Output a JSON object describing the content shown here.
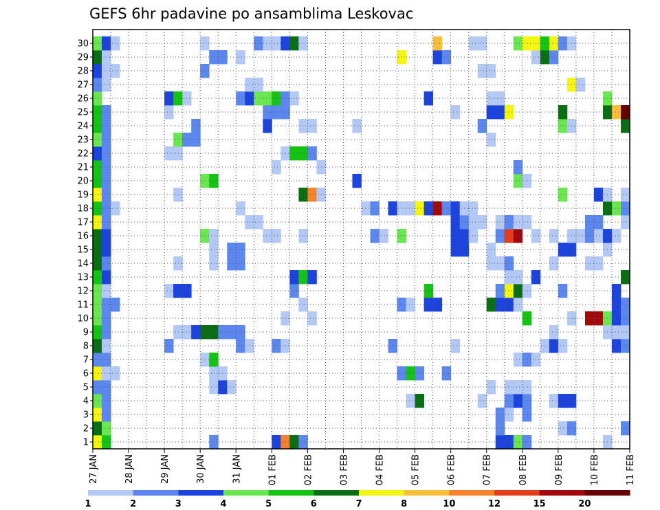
{
  "chart_data": {
    "type": "heatmap",
    "title": "GEFS 6hr padavine po ansamblima Leskovac",
    "xlabel": "",
    "ylabel": "",
    "y_ticks": [
      "1",
      "2",
      "3",
      "4",
      "5",
      "6",
      "7",
      "8",
      "9",
      "10",
      "11",
      "12",
      "13",
      "14",
      "15",
      "16",
      "17",
      "18",
      "19",
      "20",
      "21",
      "22",
      "23",
      "24",
      "25",
      "26",
      "27",
      "28",
      "29",
      "30"
    ],
    "x_ticks": [
      "27 JAN",
      "28 JAN",
      "29 JAN",
      "30 JAN",
      "31 JAN",
      "01 FEB",
      "02 FEB",
      "03 FEB",
      "04 FEB",
      "05 FEB",
      "06 FEB",
      "07 FEB",
      "08 FEB",
      "09 FEB",
      "10 FEB",
      "11 FEB"
    ],
    "steps_per_day": 4,
    "time_steps": 61,
    "color_levels": [
      "1",
      "2",
      "3",
      "4",
      "5",
      "6",
      "7",
      "8",
      "10",
      "12",
      "15",
      "20"
    ],
    "colors": [
      "#b4c8f5",
      "#5c87ee",
      "#1c44dc",
      "#6ae650",
      "#14c314",
      "#0a6e14",
      "#f5f514",
      "#fabe3c",
      "#f5822c",
      "#e63c1e",
      "#a00a0a",
      "#640000"
    ],
    "cells": [
      [
        1,
        0,
        6
      ],
      [
        1,
        1,
        4
      ],
      [
        1,
        13,
        1
      ],
      [
        1,
        20,
        2
      ],
      [
        1,
        21,
        8
      ],
      [
        1,
        22,
        5
      ],
      [
        1,
        23,
        1
      ],
      [
        1,
        45,
        2
      ],
      [
        1,
        46,
        2
      ],
      [
        1,
        47,
        3
      ],
      [
        1,
        48,
        1
      ],
      [
        1,
        57,
        0
      ],
      [
        1,
        60,
        0
      ],
      [
        2,
        0,
        5
      ],
      [
        2,
        1,
        3
      ],
      [
        2,
        45,
        1
      ],
      [
        2,
        52,
        0
      ],
      [
        2,
        53,
        1
      ],
      [
        2,
        59,
        1
      ],
      [
        3,
        0,
        6
      ],
      [
        3,
        1,
        1
      ],
      [
        3,
        45,
        1
      ],
      [
        3,
        46,
        0
      ],
      [
        3,
        48,
        1
      ],
      [
        4,
        0,
        3
      ],
      [
        4,
        1,
        1
      ],
      [
        4,
        35,
        0
      ],
      [
        4,
        36,
        5
      ],
      [
        4,
        43,
        0
      ],
      [
        4,
        46,
        1
      ],
      [
        4,
        47,
        2
      ],
      [
        4,
        48,
        1
      ],
      [
        4,
        51,
        0
      ],
      [
        4,
        52,
        2
      ],
      [
        4,
        53,
        2
      ],
      [
        5,
        0,
        1
      ],
      [
        5,
        1,
        1
      ],
      [
        5,
        13,
        0
      ],
      [
        5,
        14,
        2
      ],
      [
        5,
        15,
        0
      ],
      [
        5,
        44,
        0
      ],
      [
        5,
        46,
        0
      ],
      [
        5,
        47,
        0
      ],
      [
        5,
        48,
        0
      ],
      [
        6,
        0,
        6
      ],
      [
        6,
        1,
        0
      ],
      [
        6,
        2,
        0
      ],
      [
        6,
        13,
        0
      ],
      [
        6,
        14,
        0
      ],
      [
        6,
        34,
        1
      ],
      [
        6,
        35,
        4
      ],
      [
        6,
        36,
        1
      ],
      [
        6,
        39,
        1
      ],
      [
        7,
        0,
        1
      ],
      [
        7,
        1,
        1
      ],
      [
        7,
        12,
        0
      ],
      [
        7,
        13,
        4
      ],
      [
        7,
        47,
        0
      ],
      [
        7,
        48,
        1
      ],
      [
        7,
        49,
        0
      ],
      [
        8,
        0,
        5
      ],
      [
        8,
        1,
        0
      ],
      [
        8,
        8,
        1
      ],
      [
        8,
        16,
        1
      ],
      [
        8,
        17,
        0
      ],
      [
        8,
        20,
        1
      ],
      [
        8,
        21,
        0
      ],
      [
        8,
        33,
        1
      ],
      [
        8,
        40,
        0
      ],
      [
        8,
        50,
        0
      ],
      [
        8,
        51,
        2
      ],
      [
        8,
        52,
        0
      ],
      [
        8,
        58,
        2
      ],
      [
        8,
        59,
        1
      ],
      [
        8,
        60,
        2
      ],
      [
        9,
        0,
        4
      ],
      [
        9,
        1,
        1
      ],
      [
        9,
        9,
        0
      ],
      [
        9,
        10,
        0
      ],
      [
        9,
        11,
        2
      ],
      [
        9,
        12,
        5
      ],
      [
        9,
        13,
        5
      ],
      [
        9,
        14,
        1
      ],
      [
        9,
        15,
        1
      ],
      [
        9,
        16,
        1
      ],
      [
        9,
        51,
        0
      ],
      [
        9,
        57,
        0
      ],
      [
        9,
        58,
        0
      ],
      [
        9,
        59,
        0
      ],
      [
        10,
        0,
        3
      ],
      [
        10,
        1,
        1
      ],
      [
        10,
        21,
        0
      ],
      [
        10,
        24,
        0
      ],
      [
        10,
        48,
        4
      ],
      [
        10,
        53,
        0
      ],
      [
        10,
        55,
        10
      ],
      [
        10,
        56,
        10
      ],
      [
        10,
        57,
        3
      ],
      [
        10,
        58,
        2
      ],
      [
        10,
        59,
        1
      ],
      [
        11,
        0,
        3
      ],
      [
        11,
        1,
        1
      ],
      [
        11,
        2,
        1
      ],
      [
        11,
        23,
        0
      ],
      [
        11,
        34,
        1
      ],
      [
        11,
        35,
        0
      ],
      [
        11,
        37,
        2
      ],
      [
        11,
        38,
        2
      ],
      [
        11,
        44,
        5
      ],
      [
        11,
        45,
        2
      ],
      [
        11,
        46,
        2
      ],
      [
        11,
        47,
        0
      ],
      [
        11,
        58,
        2
      ],
      [
        11,
        59,
        1
      ],
      [
        12,
        0,
        3
      ],
      [
        12,
        1,
        0
      ],
      [
        12,
        8,
        0
      ],
      [
        12,
        9,
        2
      ],
      [
        12,
        10,
        2
      ],
      [
        12,
        22,
        1
      ],
      [
        12,
        37,
        4
      ],
      [
        12,
        45,
        1
      ],
      [
        12,
        46,
        6
      ],
      [
        12,
        47,
        5
      ],
      [
        12,
        48,
        0
      ],
      [
        12,
        52,
        1
      ],
      [
        12,
        58,
        2
      ],
      [
        13,
        0,
        4
      ],
      [
        13,
        1,
        2
      ],
      [
        13,
        22,
        2
      ],
      [
        13,
        23,
        4
      ],
      [
        13,
        24,
        2
      ],
      [
        13,
        46,
        0
      ],
      [
        13,
        47,
        0
      ],
      [
        13,
        49,
        2
      ],
      [
        13,
        59,
        5
      ],
      [
        14,
        0,
        5
      ],
      [
        14,
        1,
        1
      ],
      [
        14,
        9,
        0
      ],
      [
        14,
        13,
        0
      ],
      [
        14,
        15,
        1
      ],
      [
        14,
        16,
        1
      ],
      [
        14,
        44,
        0
      ],
      [
        14,
        45,
        0
      ],
      [
        14,
        46,
        1
      ],
      [
        14,
        51,
        0
      ],
      [
        14,
        55,
        0
      ],
      [
        14,
        56,
        0
      ],
      [
        15,
        0,
        5
      ],
      [
        15,
        1,
        2
      ],
      [
        15,
        13,
        0
      ],
      [
        15,
        15,
        1
      ],
      [
        15,
        16,
        1
      ],
      [
        15,
        40,
        2
      ],
      [
        15,
        41,
        2
      ],
      [
        15,
        44,
        0
      ],
      [
        15,
        52,
        2
      ],
      [
        15,
        53,
        2
      ],
      [
        15,
        57,
        0
      ],
      [
        16,
        0,
        5
      ],
      [
        16,
        1,
        2
      ],
      [
        16,
        12,
        3
      ],
      [
        16,
        13,
        0
      ],
      [
        16,
        19,
        0
      ],
      [
        16,
        20,
        0
      ],
      [
        16,
        23,
        0
      ],
      [
        16,
        31,
        1
      ],
      [
        16,
        32,
        0
      ],
      [
        16,
        34,
        3
      ],
      [
        16,
        40,
        2
      ],
      [
        16,
        41,
        2
      ],
      [
        16,
        42,
        0
      ],
      [
        16,
        45,
        1
      ],
      [
        16,
        46,
        9
      ],
      [
        16,
        47,
        10
      ],
      [
        16,
        49,
        0
      ],
      [
        16,
        51,
        0
      ],
      [
        16,
        53,
        0
      ],
      [
        16,
        54,
        0
      ],
      [
        16,
        55,
        1
      ],
      [
        16,
        56,
        0
      ],
      [
        16,
        57,
        2
      ],
      [
        16,
        58,
        0
      ],
      [
        17,
        0,
        6
      ],
      [
        17,
        1,
        1
      ],
      [
        17,
        17,
        0
      ],
      [
        17,
        18,
        0
      ],
      [
        17,
        40,
        2
      ],
      [
        17,
        41,
        1
      ],
      [
        17,
        42,
        0
      ],
      [
        17,
        43,
        0
      ],
      [
        17,
        45,
        0
      ],
      [
        17,
        46,
        1
      ],
      [
        17,
        47,
        0
      ],
      [
        17,
        48,
        0
      ],
      [
        17,
        55,
        1
      ],
      [
        17,
        56,
        1
      ],
      [
        17,
        59,
        0
      ],
      [
        18,
        0,
        4
      ],
      [
        18,
        1,
        1
      ],
      [
        18,
        2,
        0
      ],
      [
        18,
        16,
        0
      ],
      [
        18,
        30,
        0
      ],
      [
        18,
        31,
        1
      ],
      [
        18,
        33,
        2
      ],
      [
        18,
        34,
        0
      ],
      [
        18,
        35,
        0
      ],
      [
        18,
        36,
        6
      ],
      [
        18,
        37,
        2
      ],
      [
        18,
        38,
        10
      ],
      [
        18,
        39,
        1
      ],
      [
        18,
        40,
        2
      ],
      [
        18,
        41,
        0
      ],
      [
        18,
        42,
        0
      ],
      [
        18,
        57,
        5
      ],
      [
        18,
        58,
        3
      ],
      [
        18,
        59,
        1
      ],
      [
        19,
        0,
        6
      ],
      [
        19,
        1,
        1
      ],
      [
        19,
        9,
        0
      ],
      [
        19,
        23,
        5
      ],
      [
        19,
        24,
        8
      ],
      [
        19,
        25,
        0
      ],
      [
        19,
        52,
        3
      ],
      [
        19,
        56,
        2
      ],
      [
        19,
        57,
        0
      ],
      [
        19,
        59,
        0
      ],
      [
        20,
        0,
        4
      ],
      [
        20,
        1,
        1
      ],
      [
        20,
        12,
        3
      ],
      [
        20,
        13,
        4
      ],
      [
        20,
        29,
        2
      ],
      [
        20,
        47,
        3
      ],
      [
        20,
        48,
        0
      ],
      [
        21,
        0,
        4
      ],
      [
        21,
        1,
        1
      ],
      [
        21,
        20,
        0
      ],
      [
        21,
        25,
        0
      ],
      [
        21,
        47,
        1
      ],
      [
        22,
        0,
        2
      ],
      [
        22,
        1,
        1
      ],
      [
        22,
        8,
        0
      ],
      [
        22,
        9,
        0
      ],
      [
        22,
        21,
        0
      ],
      [
        22,
        22,
        4
      ],
      [
        22,
        23,
        4
      ],
      [
        22,
        24,
        1
      ],
      [
        23,
        0,
        3
      ],
      [
        23,
        1,
        1
      ],
      [
        23,
        9,
        3
      ],
      [
        23,
        10,
        1
      ],
      [
        23,
        11,
        1
      ],
      [
        23,
        44,
        0
      ],
      [
        24,
        0,
        4
      ],
      [
        24,
        1,
        1
      ],
      [
        24,
        11,
        1
      ],
      [
        24,
        19,
        2
      ],
      [
        24,
        23,
        0
      ],
      [
        24,
        24,
        0
      ],
      [
        24,
        29,
        0
      ],
      [
        24,
        43,
        1
      ],
      [
        24,
        52,
        3
      ],
      [
        24,
        53,
        0
      ],
      [
        24,
        59,
        5
      ],
      [
        24,
        60,
        1
      ],
      [
        25,
        0,
        4
      ],
      [
        25,
        1,
        1
      ],
      [
        25,
        8,
        0
      ],
      [
        25,
        19,
        1
      ],
      [
        25,
        20,
        1
      ],
      [
        25,
        21,
        1
      ],
      [
        25,
        40,
        0
      ],
      [
        25,
        44,
        2
      ],
      [
        25,
        45,
        2
      ],
      [
        25,
        46,
        6
      ],
      [
        25,
        52,
        5
      ],
      [
        25,
        57,
        5
      ],
      [
        25,
        58,
        7
      ],
      [
        25,
        59,
        11
      ],
      [
        25,
        60,
        10
      ],
      [
        26,
        0,
        3
      ],
      [
        26,
        8,
        2
      ],
      [
        26,
        9,
        4
      ],
      [
        26,
        10,
        0
      ],
      [
        26,
        16,
        1
      ],
      [
        26,
        17,
        2
      ],
      [
        26,
        18,
        3
      ],
      [
        26,
        19,
        3
      ],
      [
        26,
        20,
        4
      ],
      [
        26,
        21,
        1
      ],
      [
        26,
        22,
        0
      ],
      [
        26,
        37,
        2
      ],
      [
        26,
        44,
        0
      ],
      [
        26,
        45,
        0
      ],
      [
        26,
        57,
        3
      ],
      [
        27,
        0,
        1
      ],
      [
        27,
        1,
        0
      ],
      [
        27,
        17,
        0
      ],
      [
        27,
        18,
        0
      ],
      [
        27,
        53,
        6
      ],
      [
        27,
        54,
        0
      ],
      [
        28,
        0,
        2
      ],
      [
        28,
        1,
        0
      ],
      [
        28,
        2,
        0
      ],
      [
        28,
        12,
        1
      ],
      [
        28,
        43,
        0
      ],
      [
        28,
        44,
        0
      ],
      [
        29,
        0,
        5
      ],
      [
        29,
        1,
        0
      ],
      [
        29,
        13,
        1
      ],
      [
        29,
        14,
        1
      ],
      [
        29,
        16,
        0
      ],
      [
        29,
        34,
        6
      ],
      [
        29,
        38,
        2
      ],
      [
        29,
        39,
        1
      ],
      [
        29,
        49,
        0
      ],
      [
        29,
        50,
        5
      ],
      [
        29,
        51,
        1
      ],
      [
        30,
        0,
        3
      ],
      [
        30,
        1,
        2
      ],
      [
        30,
        2,
        0
      ],
      [
        30,
        12,
        0
      ],
      [
        30,
        18,
        1
      ],
      [
        30,
        19,
        0
      ],
      [
        30,
        20,
        0
      ],
      [
        30,
        21,
        2
      ],
      [
        30,
        22,
        5
      ],
      [
        30,
        23,
        0
      ],
      [
        30,
        38,
        7
      ],
      [
        30,
        42,
        0
      ],
      [
        30,
        43,
        0
      ],
      [
        30,
        47,
        3
      ],
      [
        30,
        48,
        6
      ],
      [
        30,
        49,
        6
      ],
      [
        30,
        50,
        4
      ],
      [
        30,
        51,
        6
      ],
      [
        30,
        52,
        1
      ],
      [
        30,
        53,
        0
      ]
    ],
    "grid": true
  }
}
